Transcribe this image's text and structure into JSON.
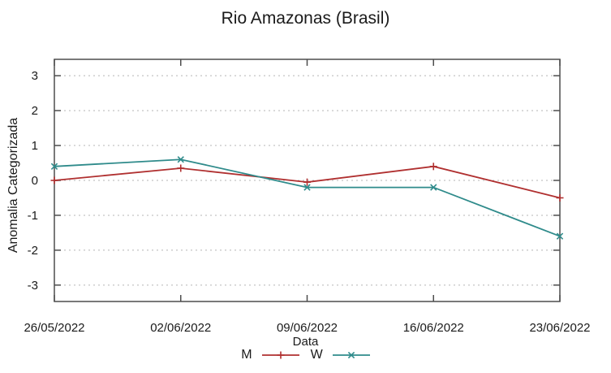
{
  "figure": {
    "title": "Rio Amazonas (Brasil)"
  },
  "chart_data": {
    "type": "line",
    "title": "Rio Amazonas (Brasil)",
    "xlabel": "Data",
    "ylabel": "Anomalia Categorizada",
    "categories": [
      "26/05/2022",
      "02/06/2022",
      "09/06/2022",
      "16/06/2022",
      "23/06/2022"
    ],
    "yticks": [
      3,
      2,
      1,
      0,
      -1,
      -2,
      -3
    ],
    "ylim": [
      -3.47,
      3.47
    ],
    "grid": "horizontal-dashed",
    "legend_position": "bottom-center",
    "series": [
      {
        "name": "M",
        "color": "#b03030",
        "marker": "plus",
        "values": [
          0.0,
          0.35,
          -0.05,
          0.4,
          -0.5
        ]
      },
      {
        "name": "W",
        "color": "#2f8b8b",
        "marker": "cross",
        "values": [
          0.4,
          0.6,
          -0.2,
          -0.2,
          -1.6
        ]
      }
    ],
    "styles": {
      "border_color": "#4d4d4d",
      "grid_color": "#b5b5b5",
      "text_color": "#1a1a1a",
      "background": "#ffffff"
    }
  }
}
